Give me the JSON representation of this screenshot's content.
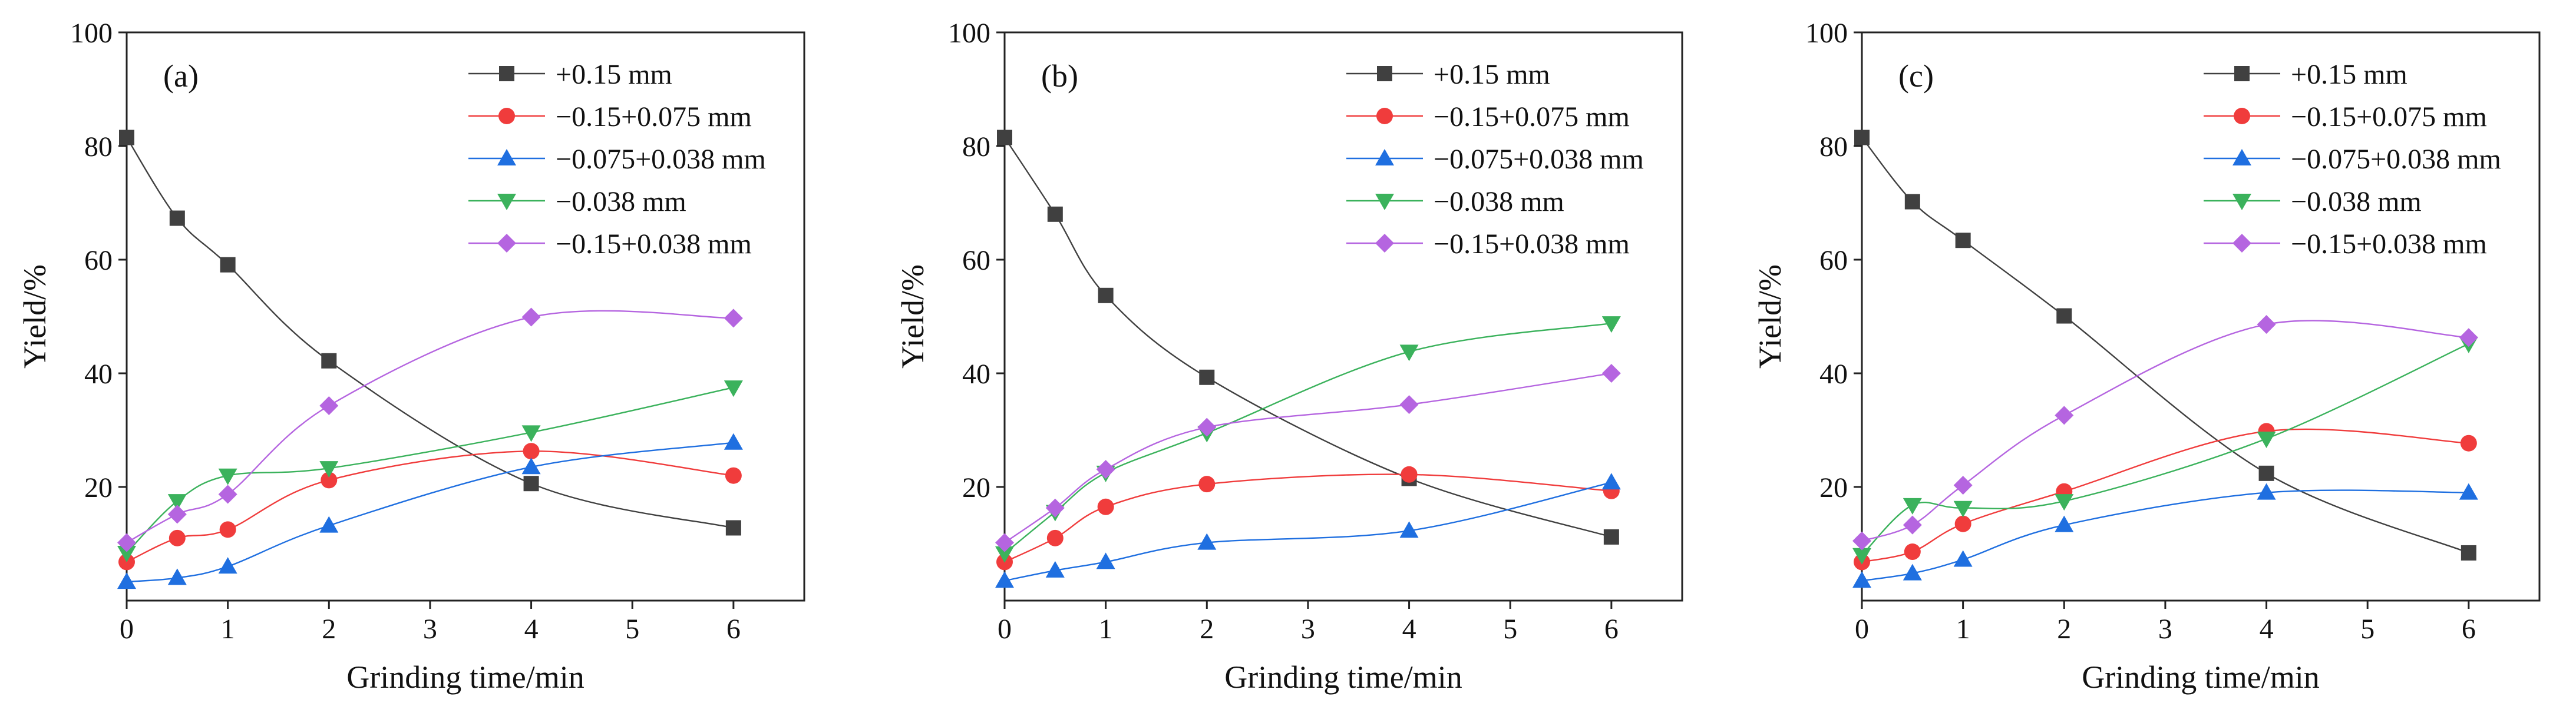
{
  "chart_data": [
    {
      "type": "line",
      "panel_label": "(a)",
      "xlabel": "Grinding time/min",
      "ylabel": "Yield/%",
      "xlim": [
        0,
        6.7
      ],
      "ylim": [
        0,
        100
      ],
      "xticks": [
        0,
        1,
        2,
        3,
        4,
        5,
        6
      ],
      "yticks": [
        20,
        40,
        60,
        80,
        100
      ],
      "x": [
        0,
        0.5,
        1,
        2,
        4,
        6
      ],
      "legend_position": "top-right",
      "series": [
        {
          "name": "+0.15 mm",
          "marker": "square",
          "color": "#404040",
          "values": [
            81.5,
            67.3,
            59.1,
            42.2,
            20.6,
            12.8
          ]
        },
        {
          "name": "−0.15+0.075 mm",
          "marker": "circle",
          "color": "#f03c3c",
          "values": [
            6.8,
            11.0,
            12.5,
            21.2,
            26.3,
            22.0
          ]
        },
        {
          "name": "−0.075+0.038 mm",
          "marker": "triangle-up",
          "color": "#1f6fe0",
          "values": [
            3.3,
            4.0,
            6.0,
            13.2,
            23.5,
            27.8
          ]
        },
        {
          "name": "−0.038 mm",
          "marker": "triangle-down",
          "color": "#3bb25c",
          "values": [
            8.4,
            17.5,
            22.0,
            23.3,
            29.6,
            37.5
          ]
        },
        {
          "name": "−0.15+0.038 mm",
          "marker": "diamond",
          "color": "#b565e0",
          "values": [
            10.2,
            15.2,
            18.7,
            34.3,
            49.9,
            49.7
          ]
        }
      ]
    },
    {
      "type": "line",
      "panel_label": "(b)",
      "xlabel": "Grinding time/min",
      "ylabel": "Yield/%",
      "xlim": [
        0,
        6.7
      ],
      "ylim": [
        0,
        100
      ],
      "xticks": [
        0,
        1,
        2,
        3,
        4,
        5,
        6
      ],
      "yticks": [
        20,
        40,
        60,
        80,
        100
      ],
      "x": [
        0,
        0.5,
        1,
        2,
        4,
        6
      ],
      "legend_position": "top-right",
      "series": [
        {
          "name": "+0.15 mm",
          "marker": "square",
          "color": "#404040",
          "values": [
            81.5,
            68.0,
            53.7,
            39.3,
            21.5,
            11.2
          ]
        },
        {
          "name": "−0.15+0.075 mm",
          "marker": "circle",
          "color": "#f03c3c",
          "values": [
            6.8,
            11.0,
            16.5,
            20.5,
            22.2,
            19.3
          ]
        },
        {
          "name": "−0.075+0.038 mm",
          "marker": "triangle-up",
          "color": "#1f6fe0",
          "values": [
            3.5,
            5.3,
            6.8,
            10.2,
            12.3,
            20.8
          ]
        },
        {
          "name": "−0.038 mm",
          "marker": "triangle-down",
          "color": "#3bb25c",
          "values": [
            8.3,
            15.6,
            22.5,
            29.5,
            43.8,
            48.8
          ]
        },
        {
          "name": "−0.15+0.038 mm",
          "marker": "diamond",
          "color": "#b565e0",
          "values": [
            10.2,
            16.3,
            23.1,
            30.5,
            34.5,
            40.0
          ]
        }
      ]
    },
    {
      "type": "line",
      "panel_label": "(c)",
      "xlabel": "Grinding time/min",
      "ylabel": "Yield/%",
      "xlim": [
        0,
        6.7
      ],
      "ylim": [
        0,
        100
      ],
      "xticks": [
        0,
        1,
        2,
        3,
        4,
        5,
        6
      ],
      "yticks": [
        20,
        40,
        60,
        80,
        100
      ],
      "x": [
        0,
        0.5,
        1,
        2,
        4,
        6
      ],
      "legend_position": "top-right",
      "series": [
        {
          "name": "+0.15 mm",
          "marker": "square",
          "color": "#404040",
          "values": [
            81.5,
            70.2,
            63.4,
            50.1,
            22.4,
            8.4
          ]
        },
        {
          "name": "−0.15+0.075 mm",
          "marker": "circle",
          "color": "#f03c3c",
          "values": [
            6.8,
            8.6,
            13.5,
            19.2,
            29.8,
            27.7
          ]
        },
        {
          "name": "−0.075+0.038 mm",
          "marker": "triangle-up",
          "color": "#1f6fe0",
          "values": [
            3.5,
            4.8,
            7.2,
            13.3,
            19.0,
            19.0
          ]
        },
        {
          "name": "−0.038 mm",
          "marker": "triangle-down",
          "color": "#3bb25c",
          "values": [
            8.0,
            16.8,
            16.3,
            17.5,
            28.5,
            45.2
          ]
        },
        {
          "name": "−0.15+0.038 mm",
          "marker": "diamond",
          "color": "#b565e0",
          "values": [
            10.5,
            13.3,
            20.3,
            32.6,
            48.6,
            46.3
          ]
        }
      ]
    }
  ]
}
